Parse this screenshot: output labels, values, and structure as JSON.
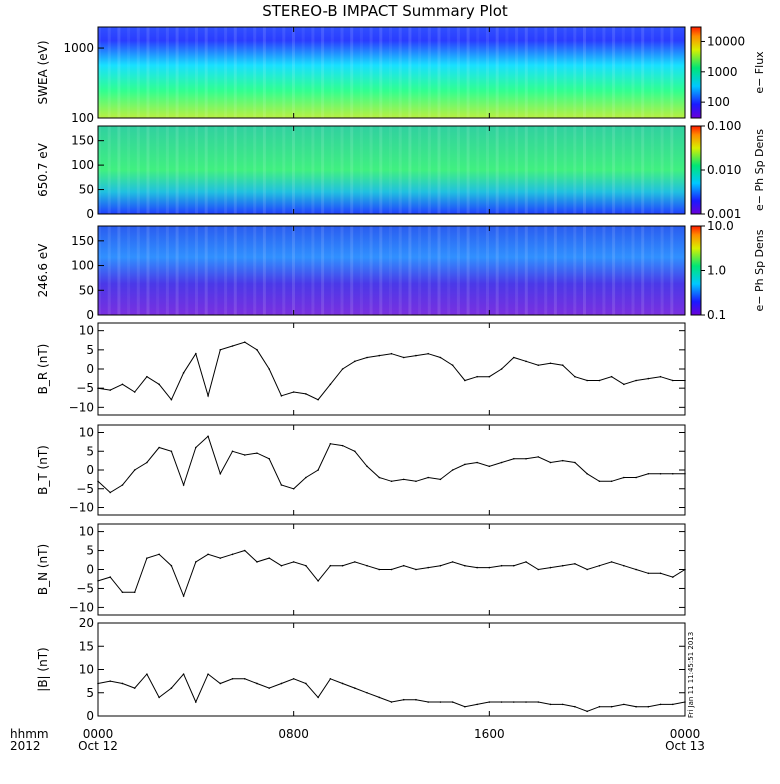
{
  "title": "STEREO-B IMPACT Summary Plot",
  "footer": {
    "left_top": "hhmm",
    "left_bottom": "2012",
    "stamp": "Fri Jan 11 11:45:51 2013"
  },
  "x_axis": {
    "range_hours": [
      0,
      24
    ],
    "ticks": [
      {
        "hour": 0,
        "top": "0000",
        "bottom": "Oct 12"
      },
      {
        "hour": 8,
        "top": "0800",
        "bottom": ""
      },
      {
        "hour": 16,
        "top": "1600",
        "bottom": ""
      },
      {
        "hour": 24,
        "top": "0000",
        "bottom": "Oct 13"
      }
    ]
  },
  "spectrograms": [
    {
      "ylabel": "SWEA (eV)",
      "yscale": "log",
      "ylim": [
        100,
        2000
      ],
      "yticks": [
        "1000",
        "100"
      ],
      "colorbar": {
        "label": "e− Flux",
        "scale": "log",
        "range": [
          30,
          30000
        ],
        "ticks": [
          "10000",
          "1000",
          "100"
        ]
      }
    },
    {
      "ylabel": "650.7 eV",
      "yscale": "linear",
      "ylim": [
        0,
        180
      ],
      "yticks": [
        "150",
        "100",
        "50",
        "0"
      ],
      "colorbar": {
        "label": "e− Ph Sp Dens",
        "scale": "log",
        "range": [
          0.001,
          0.1
        ],
        "ticks": [
          "0.100",
          "0.010",
          "0.001"
        ]
      }
    },
    {
      "ylabel": "246.6 eV",
      "yscale": "linear",
      "ylim": [
        0,
        180
      ],
      "yticks": [
        "150",
        "100",
        "50",
        "0"
      ],
      "colorbar": {
        "label": "e− Ph Sp Dens",
        "scale": "log",
        "range": [
          0.1,
          10
        ],
        "ticks": [
          "10.0",
          "1.0",
          "0.1"
        ]
      }
    }
  ],
  "chart_data": [
    {
      "type": "line",
      "ylabel": "B_R (nT)",
      "ylim": [
        -12,
        12
      ],
      "yticks": [
        "10",
        "5",
        "0",
        "−5",
        "−10"
      ],
      "x": [
        0,
        0.5,
        1,
        1.5,
        2,
        2.5,
        3,
        3.5,
        4,
        4.5,
        5,
        5.5,
        6,
        6.5,
        7,
        7.5,
        8,
        8.5,
        9,
        9.5,
        10,
        10.5,
        11,
        11.5,
        12,
        12.5,
        13,
        13.5,
        14,
        14.5,
        15,
        15.5,
        16,
        16.5,
        17,
        17.5,
        18,
        18.5,
        19,
        19.5,
        20,
        20.5,
        21,
        21.5,
        22,
        22.5,
        23,
        23.5,
        24
      ],
      "values": [
        -5,
        -5.5,
        -4,
        -6,
        -2,
        -4,
        -8,
        -1,
        4,
        -7,
        5,
        6,
        7,
        5,
        0,
        -7,
        -6,
        -6.5,
        -8,
        -4,
        0,
        2,
        3,
        3.5,
        4,
        3,
        3.5,
        4,
        3,
        1,
        -3,
        -2,
        -2,
        0,
        3,
        2,
        1,
        1.5,
        1,
        -2,
        -3,
        -3,
        -2,
        -4,
        -3,
        -2.5,
        -2,
        -3,
        -3
      ]
    },
    {
      "type": "line",
      "ylabel": "B_T (nT)",
      "ylim": [
        -12,
        12
      ],
      "yticks": [
        "10",
        "5",
        "0",
        "−5",
        "−10"
      ],
      "x": [
        0,
        0.5,
        1,
        1.5,
        2,
        2.5,
        3,
        3.5,
        4,
        4.5,
        5,
        5.5,
        6,
        6.5,
        7,
        7.5,
        8,
        8.5,
        9,
        9.5,
        10,
        10.5,
        11,
        11.5,
        12,
        12.5,
        13,
        13.5,
        14,
        14.5,
        15,
        15.5,
        16,
        16.5,
        17,
        17.5,
        18,
        18.5,
        19,
        19.5,
        20,
        20.5,
        21,
        21.5,
        22,
        22.5,
        23,
        23.5,
        24
      ],
      "values": [
        -3,
        -6,
        -4,
        0,
        2,
        6,
        5,
        -4,
        6,
        9,
        -1,
        5,
        4,
        4.5,
        3,
        -4,
        -5,
        -2,
        0,
        7,
        6.5,
        5,
        1,
        -2,
        -3,
        -2.5,
        -3,
        -2,
        -2.5,
        0,
        1.5,
        2,
        1,
        2,
        3,
        3,
        3.5,
        2,
        2.5,
        2,
        -1,
        -3,
        -3,
        -2,
        -2,
        -1,
        -1,
        -1,
        -1
      ]
    },
    {
      "type": "line",
      "ylabel": "B_N (nT)",
      "ylim": [
        -12,
        12
      ],
      "yticks": [
        "10",
        "5",
        "0",
        "−5",
        "−10"
      ],
      "x": [
        0,
        0.5,
        1,
        1.5,
        2,
        2.5,
        3,
        3.5,
        4,
        4.5,
        5,
        5.5,
        6,
        6.5,
        7,
        7.5,
        8,
        8.5,
        9,
        9.5,
        10,
        10.5,
        11,
        11.5,
        12,
        12.5,
        13,
        13.5,
        14,
        14.5,
        15,
        15.5,
        16,
        16.5,
        17,
        17.5,
        18,
        18.5,
        19,
        19.5,
        20,
        20.5,
        21,
        21.5,
        22,
        22.5,
        23,
        23.5,
        24
      ],
      "values": [
        -3,
        -2,
        -6,
        -6,
        3,
        4,
        1,
        -7,
        2,
        4,
        3,
        4,
        5,
        2,
        3,
        1,
        2,
        1,
        -3,
        1,
        1,
        2,
        1,
        0,
        0,
        1,
        0,
        0.5,
        1,
        2,
        1,
        0.5,
        0.5,
        1,
        1,
        2,
        0,
        0.5,
        1,
        1.5,
        0,
        1,
        2,
        1,
        0,
        -1,
        -1,
        -2,
        0
      ]
    },
    {
      "type": "line",
      "ylabel": "|B| (nT)",
      "ylim": [
        0,
        20
      ],
      "yticks": [
        "20",
        "15",
        "10",
        "5",
        "0"
      ],
      "x": [
        0,
        0.5,
        1,
        1.5,
        2,
        2.5,
        3,
        3.5,
        4,
        4.5,
        5,
        5.5,
        6,
        6.5,
        7,
        7.5,
        8,
        8.5,
        9,
        9.5,
        10,
        10.5,
        11,
        11.5,
        12,
        12.5,
        13,
        13.5,
        14,
        14.5,
        15,
        15.5,
        16,
        16.5,
        17,
        17.5,
        18,
        18.5,
        19,
        19.5,
        20,
        20.5,
        21,
        21.5,
        22,
        22.5,
        23,
        23.5,
        24
      ],
      "values": [
        7,
        7.5,
        7,
        6,
        9,
        4,
        6,
        9,
        3,
        9,
        7,
        8,
        8,
        7,
        6,
        7,
        8,
        7,
        4,
        8,
        7,
        6,
        5,
        4,
        3,
        3.5,
        3.5,
        3,
        3,
        3,
        2,
        2.5,
        3,
        3,
        3,
        3,
        3,
        2.5,
        2.5,
        2,
        1,
        2,
        2,
        2.5,
        2,
        2,
        2.5,
        2.5,
        3
      ]
    }
  ]
}
